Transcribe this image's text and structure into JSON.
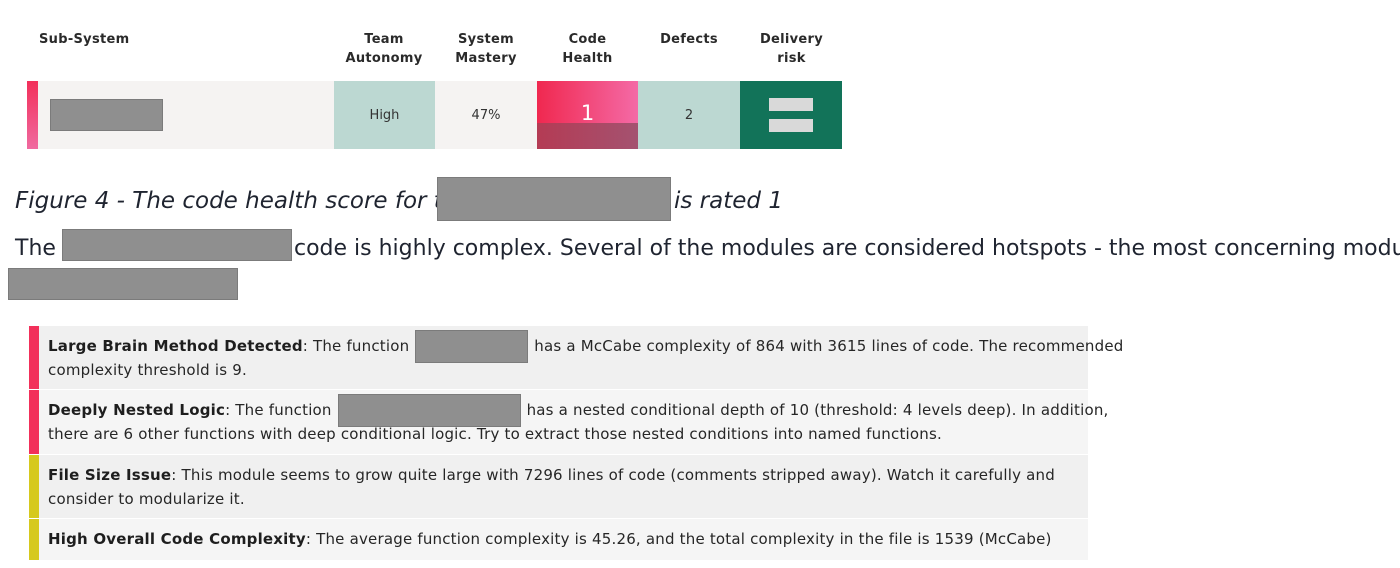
{
  "table": {
    "headers": {
      "subsystem": "Sub-System",
      "team_autonomy": [
        "Team",
        "Autonomy"
      ],
      "system_mastery": [
        "System",
        "Mastery"
      ],
      "code_health": [
        "Code",
        "Health"
      ],
      "defects": "Defects",
      "delivery_risk": [
        "Delivery",
        "risk"
      ]
    },
    "row": {
      "team_autonomy": "High",
      "system_mastery": "47%",
      "code_health": "1",
      "defects": "2"
    },
    "colors": {
      "red_accent": "#f2305a",
      "team_autonomy_bg": "#bcd8d2",
      "code_health_top": "#f0305c",
      "code_health_bottom": "#b04760",
      "defects_bg": "#bcd8d2",
      "delivery_risk_bg": "#127359"
    },
    "delivery_risk_icon": "equals-icon"
  },
  "caption": {
    "prefix": "Figure 4 - The code health score for the",
    "suffix": "is rated 1"
  },
  "paragraph": {
    "start": "The",
    "rest": "code is highly complex. Several of the modules are considered hotspots - the most concerning module is"
  },
  "findings": [
    {
      "title": "Large Brain Method Detected",
      "text_before": ": The function",
      "text_after": "has a McCabe complexity of 864 with 3615 lines of code. The recommended",
      "text_line2": "complexity threshold is 9.",
      "severity_color": "#f2305a"
    },
    {
      "title": "Deeply Nested Logic",
      "text_before": ": The function",
      "text_after": "has a nested conditional depth of 10 (threshold: 4 levels deep). In addition,",
      "text_line2": "there are 6 other functions with deep conditional logic. Try to extract those nested conditions into named functions.",
      "severity_color": "#f2305a"
    },
    {
      "title": "File Size Issue",
      "text_before": ": This module seems to grow quite large with 7296 lines of code (comments stripped away). Watch it carefully and",
      "text_line2": "consider to modularize it.",
      "severity_color": "#d6c91e"
    },
    {
      "title": "High Overall Code Complexity",
      "text_before": ": The average function complexity is 45.26, and the total complexity in the file is 1539 (McCabe)",
      "severity_color": "#d6c91e"
    }
  ]
}
